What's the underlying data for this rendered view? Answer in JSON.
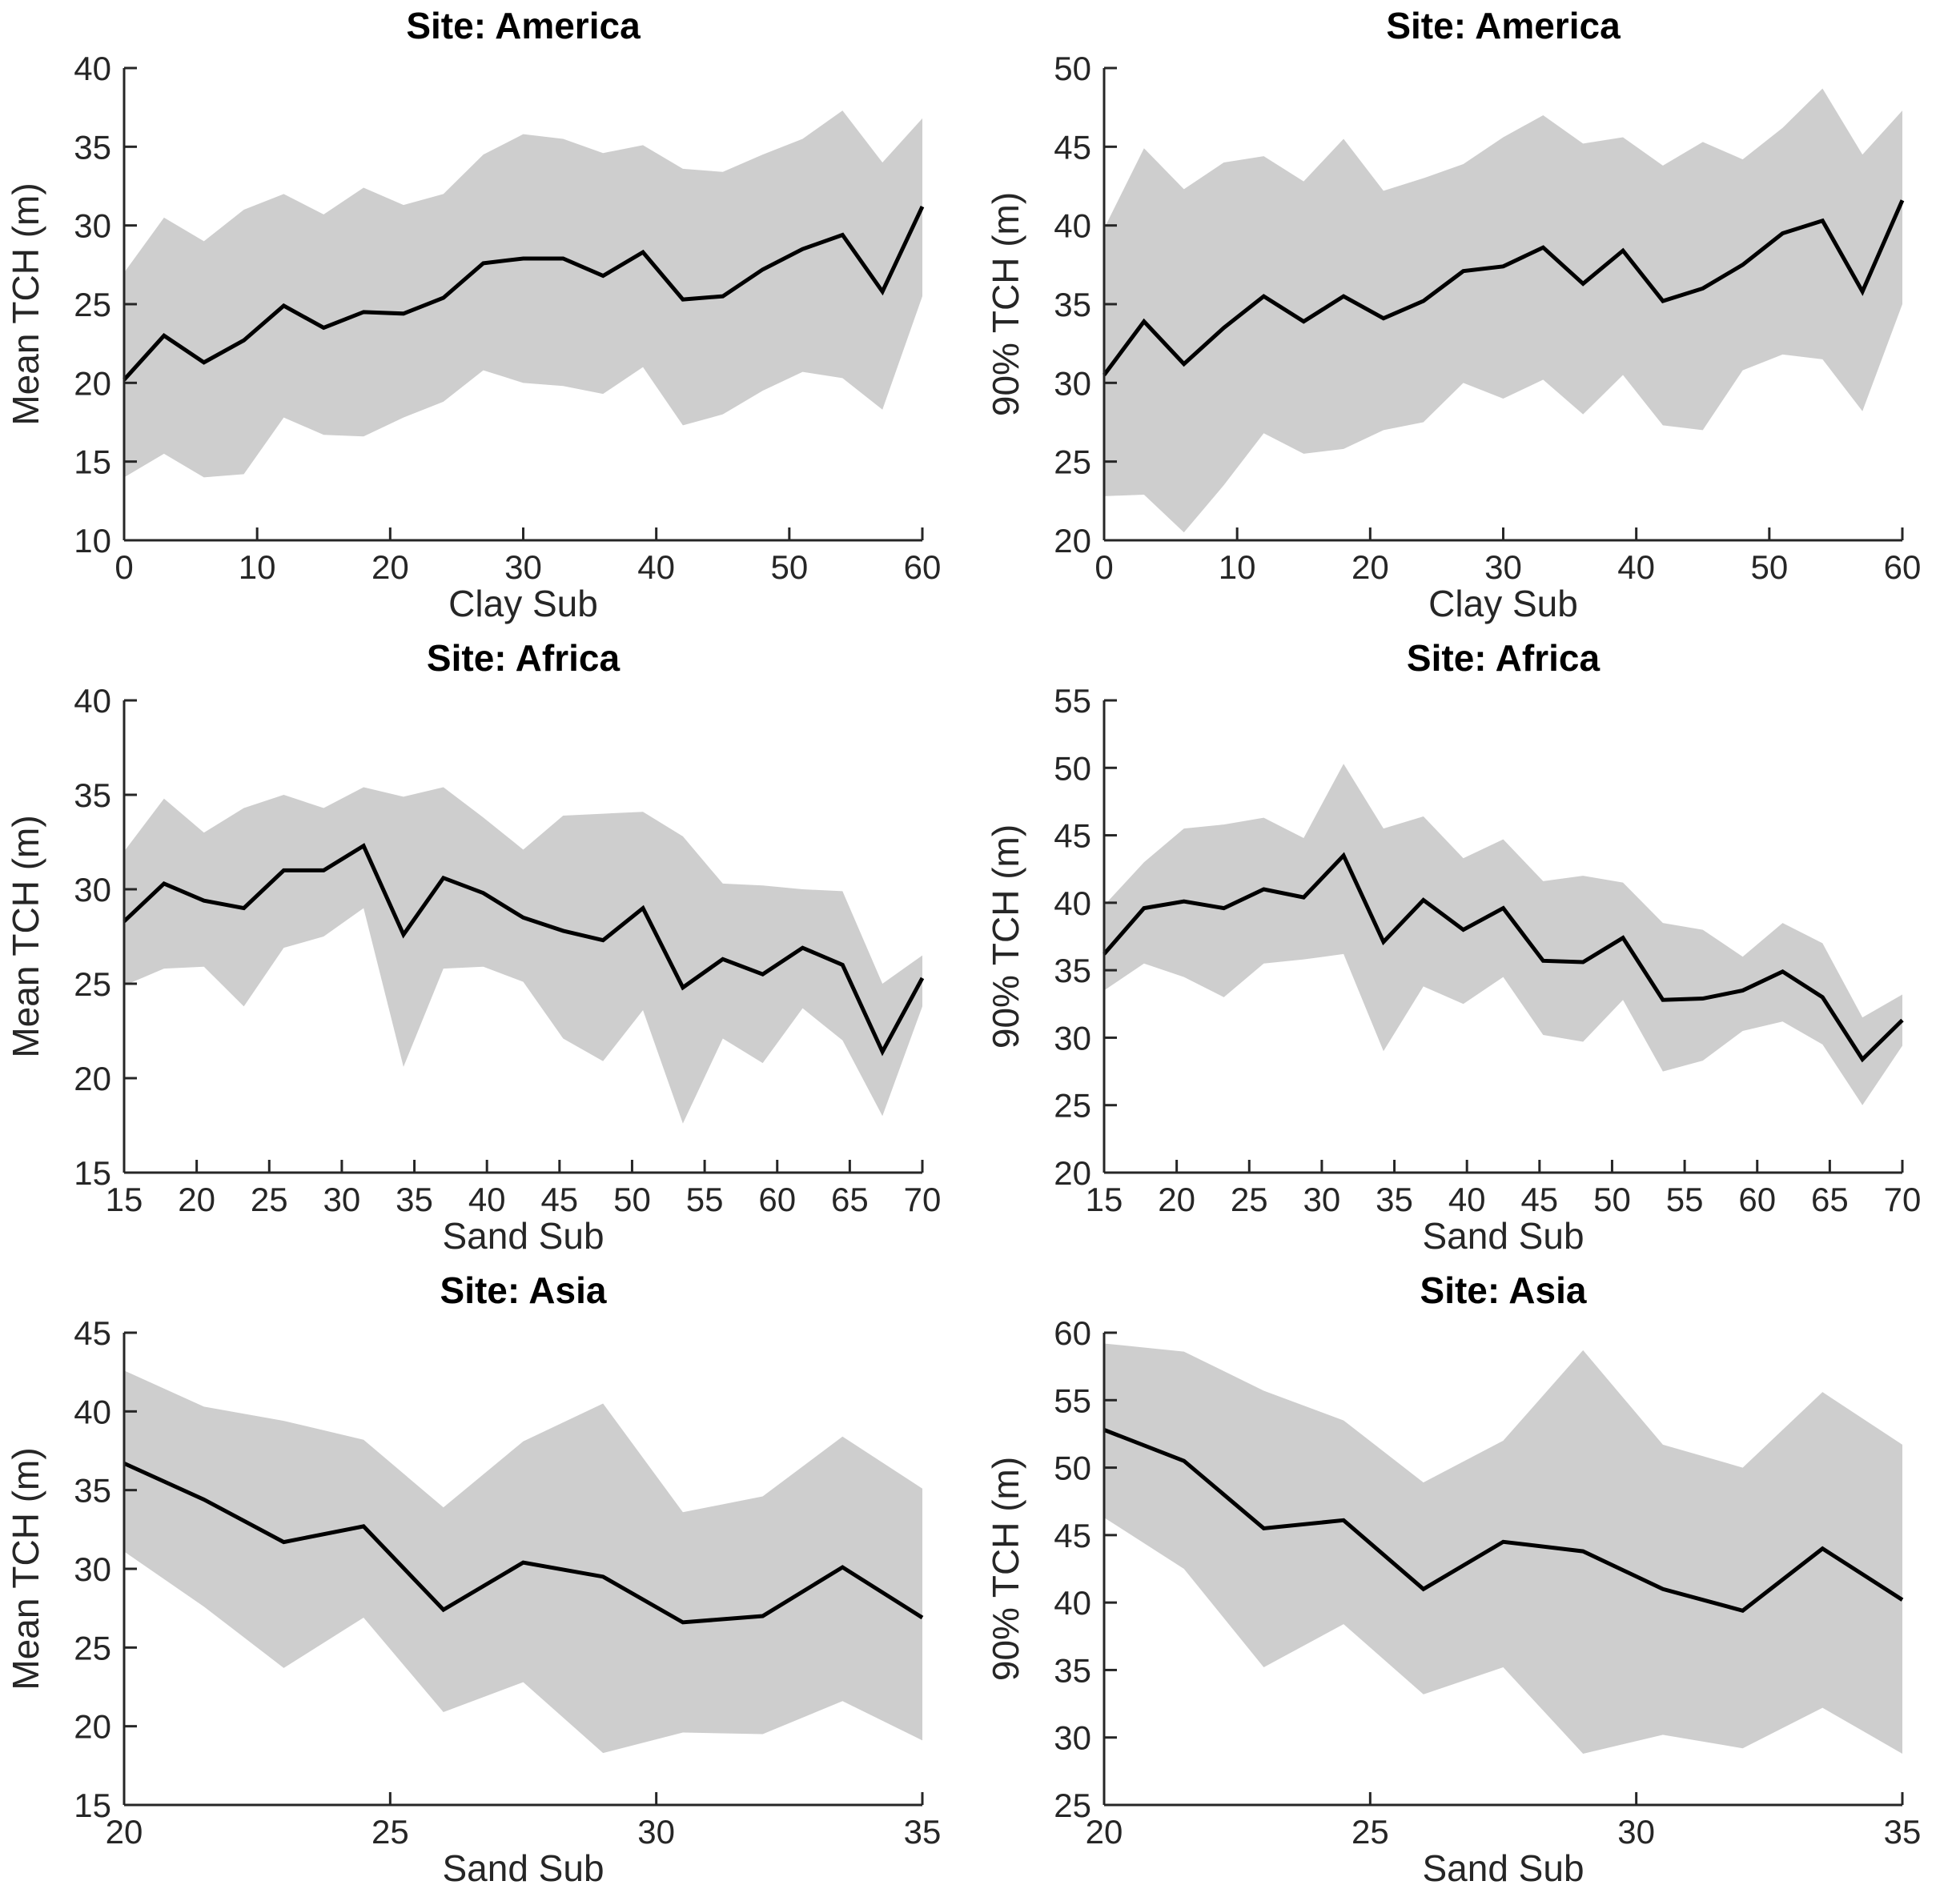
{
  "figure": {
    "description": "Grid of six line charts with shaded confidence bands: tree canopy height (TCH) versus soil substrate for three sites",
    "rows": 3,
    "cols": 2
  },
  "colors": {
    "background": "#ffffff",
    "band": "#cecece",
    "line": "#000000",
    "axis": "#262626",
    "text": "#262626"
  },
  "chart_data": [
    {
      "type": "line",
      "title": "Site: America",
      "xlabel": "Clay Sub",
      "ylabel": "Mean TCH (m)",
      "xlim": [
        0,
        60
      ],
      "ylim": [
        10,
        40
      ],
      "xticks": [
        0,
        10,
        20,
        30,
        40,
        50,
        60
      ],
      "yticks": [
        10,
        15,
        20,
        25,
        30,
        35,
        40
      ],
      "grid": false,
      "legend": "none",
      "x": [
        0,
        3,
        6,
        9,
        12,
        15,
        18,
        21,
        24,
        27,
        30,
        33,
        36,
        39,
        42,
        45,
        48,
        51,
        54,
        57,
        60
      ],
      "series": [
        {
          "name": "mean",
          "values": [
            20.2,
            23.0,
            21.3,
            22.7,
            24.9,
            23.5,
            24.5,
            24.4,
            25.4,
            27.6,
            27.9,
            27.9,
            26.8,
            28.3,
            25.3,
            25.5,
            27.2,
            28.5,
            29.4,
            25.8,
            31.2
          ]
        },
        {
          "name": "upper_ci",
          "values": [
            27.0,
            30.5,
            29.0,
            31.0,
            32.0,
            30.7,
            32.4,
            31.3,
            32.0,
            34.5,
            35.8,
            35.5,
            34.6,
            35.1,
            33.6,
            33.4,
            34.5,
            35.5,
            37.3,
            34.0,
            36.8
          ]
        },
        {
          "name": "lower_ci",
          "values": [
            14.0,
            15.5,
            14.0,
            14.2,
            17.8,
            16.7,
            16.6,
            17.8,
            18.8,
            20.8,
            20.0,
            19.8,
            19.3,
            21.0,
            17.3,
            18.0,
            19.5,
            20.7,
            20.3,
            18.3,
            25.5
          ]
        }
      ]
    },
    {
      "type": "line",
      "title": "Site: America",
      "xlabel": "Clay Sub",
      "ylabel": "90% TCH (m)",
      "xlim": [
        0,
        60
      ],
      "ylim": [
        20,
        50
      ],
      "xticks": [
        0,
        10,
        20,
        30,
        40,
        50,
        60
      ],
      "yticks": [
        20,
        25,
        30,
        35,
        40,
        45,
        50
      ],
      "grid": false,
      "legend": "none",
      "x": [
        0,
        3,
        6,
        9,
        12,
        15,
        18,
        21,
        24,
        27,
        30,
        33,
        36,
        39,
        42,
        45,
        48,
        51,
        54,
        57,
        60
      ],
      "series": [
        {
          "name": "mean",
          "values": [
            30.5,
            33.9,
            31.2,
            33.5,
            35.5,
            33.9,
            35.5,
            34.1,
            35.2,
            37.1,
            37.4,
            38.6,
            36.3,
            38.4,
            35.2,
            36.0,
            37.5,
            39.5,
            40.3,
            35.8,
            41.6
          ]
        },
        {
          "name": "upper_ci",
          "values": [
            39.8,
            44.9,
            42.3,
            44.0,
            44.4,
            42.8,
            45.5,
            42.2,
            43.0,
            43.9,
            45.6,
            47.0,
            45.2,
            45.6,
            43.8,
            45.3,
            44.2,
            46.2,
            48.7,
            44.5,
            47.3
          ]
        },
        {
          "name": "lower_ci",
          "values": [
            22.8,
            22.9,
            20.5,
            23.5,
            26.8,
            25.5,
            25.8,
            27.0,
            27.5,
            30.0,
            29.0,
            30.2,
            28.0,
            30.5,
            27.3,
            27.0,
            30.8,
            31.8,
            31.5,
            28.2,
            35.0
          ]
        }
      ]
    },
    {
      "type": "line",
      "title": "Site: Africa",
      "xlabel": "Sand Sub",
      "ylabel": "Mean TCH (m)",
      "xlim": [
        15,
        70
      ],
      "ylim": [
        15,
        40
      ],
      "xticks": [
        15,
        20,
        25,
        30,
        35,
        40,
        45,
        50,
        55,
        60,
        65,
        70
      ],
      "yticks": [
        15,
        20,
        25,
        30,
        35,
        40
      ],
      "grid": false,
      "legend": "none",
      "x": [
        15,
        17.75,
        20.5,
        23.25,
        26,
        28.75,
        31.5,
        34.25,
        37,
        39.75,
        42.5,
        45.25,
        48,
        50.75,
        53.5,
        56.25,
        59,
        61.75,
        64.5,
        67.25,
        70
      ],
      "series": [
        {
          "name": "mean",
          "values": [
            28.3,
            30.3,
            29.4,
            29.0,
            31.0,
            31.0,
            32.3,
            27.6,
            30.6,
            29.8,
            28.5,
            27.8,
            27.3,
            29.0,
            24.8,
            26.3,
            25.5,
            26.9,
            26.0,
            21.4,
            25.3
          ]
        },
        {
          "name": "upper_ci",
          "values": [
            32.0,
            34.8,
            33.0,
            34.3,
            35.0,
            34.3,
            35.4,
            34.9,
            35.4,
            33.8,
            32.1,
            33.9,
            34.0,
            34.1,
            32.8,
            30.3,
            30.2,
            30.0,
            29.9,
            25.0,
            26.5
          ]
        },
        {
          "name": "lower_ci",
          "values": [
            24.9,
            25.8,
            25.9,
            23.8,
            26.9,
            27.5,
            29.0,
            20.6,
            25.8,
            25.9,
            25.1,
            22.1,
            20.9,
            23.6,
            17.6,
            22.1,
            20.8,
            23.7,
            22.0,
            18.0,
            23.8
          ]
        }
      ]
    },
    {
      "type": "line",
      "title": "Site: Africa",
      "xlabel": "Sand Sub",
      "ylabel": "90% TCH (m)",
      "xlim": [
        15,
        70
      ],
      "ylim": [
        20,
        55
      ],
      "xticks": [
        15,
        20,
        25,
        30,
        35,
        40,
        45,
        50,
        55,
        60,
        65,
        70
      ],
      "yticks": [
        20,
        25,
        30,
        35,
        40,
        45,
        50,
        55
      ],
      "grid": false,
      "legend": "none",
      "x": [
        15,
        17.75,
        20.5,
        23.25,
        26,
        28.75,
        31.5,
        34.25,
        37,
        39.75,
        42.5,
        45.25,
        48,
        50.75,
        53.5,
        56.25,
        59,
        61.75,
        64.5,
        67.25,
        70
      ],
      "series": [
        {
          "name": "mean",
          "values": [
            36.2,
            39.6,
            40.1,
            39.6,
            41.0,
            40.4,
            43.5,
            37.1,
            40.2,
            38.0,
            39.6,
            35.7,
            35.6,
            37.4,
            32.8,
            32.9,
            33.5,
            34.9,
            33.0,
            28.4,
            31.3
          ]
        },
        {
          "name": "upper_ci",
          "values": [
            39.8,
            43.0,
            45.5,
            45.8,
            46.3,
            44.8,
            50.3,
            45.5,
            46.4,
            43.3,
            44.7,
            41.6,
            42.0,
            41.5,
            38.5,
            38.0,
            36.0,
            38.5,
            37.0,
            31.5,
            33.2
          ]
        },
        {
          "name": "lower_ci",
          "values": [
            33.5,
            35.5,
            34.5,
            33.0,
            35.5,
            35.8,
            36.2,
            29.0,
            33.8,
            32.5,
            34.5,
            30.2,
            29.7,
            32.8,
            27.5,
            28.3,
            30.5,
            31.2,
            29.5,
            25.0,
            29.4
          ]
        }
      ]
    },
    {
      "type": "line",
      "title": "Site: Asia",
      "xlabel": "Sand Sub",
      "ylabel": "Mean TCH (m)",
      "xlim": [
        20,
        35
      ],
      "ylim": [
        15,
        45
      ],
      "xticks": [
        20,
        25,
        30,
        35
      ],
      "yticks": [
        15,
        20,
        25,
        30,
        35,
        40,
        45
      ],
      "grid": false,
      "legend": "none",
      "x": [
        20,
        21.5,
        23,
        24.5,
        26,
        27.5,
        29,
        30.5,
        32,
        33.5,
        35
      ],
      "series": [
        {
          "name": "mean",
          "values": [
            36.7,
            34.4,
            31.7,
            32.7,
            27.4,
            30.4,
            29.5,
            26.6,
            27.0,
            30.1,
            26.9
          ]
        },
        {
          "name": "upper_ci",
          "values": [
            42.6,
            40.3,
            39.4,
            38.2,
            33.9,
            38.1,
            40.5,
            33.6,
            34.6,
            38.4,
            35.1
          ]
        },
        {
          "name": "lower_ci",
          "values": [
            31.1,
            27.6,
            23.7,
            26.9,
            20.9,
            22.8,
            18.3,
            19.6,
            19.5,
            21.6,
            19.1
          ]
        }
      ]
    },
    {
      "type": "line",
      "title": "Site: Asia",
      "xlabel": "Sand Sub",
      "ylabel": "90% TCH (m)",
      "xlim": [
        20,
        35
      ],
      "ylim": [
        25,
        60
      ],
      "xticks": [
        20,
        25,
        30,
        35
      ],
      "yticks": [
        25,
        30,
        35,
        40,
        45,
        50,
        55,
        60
      ],
      "grid": false,
      "legend": "none",
      "x": [
        20,
        21.5,
        23,
        24.5,
        26,
        27.5,
        29,
        30.5,
        32,
        33.5,
        35
      ],
      "series": [
        {
          "name": "mean",
          "values": [
            52.8,
            50.5,
            45.5,
            46.1,
            41.0,
            44.5,
            43.8,
            41.0,
            39.4,
            44.0,
            40.2
          ]
        },
        {
          "name": "upper_ci",
          "values": [
            59.2,
            58.6,
            55.7,
            53.5,
            48.9,
            52.0,
            58.7,
            51.7,
            50.0,
            55.6,
            51.7
          ]
        },
        {
          "name": "lower_ci",
          "values": [
            46.3,
            42.5,
            35.2,
            38.4,
            33.2,
            35.2,
            28.8,
            30.2,
            29.2,
            32.2,
            28.8
          ]
        }
      ]
    }
  ]
}
